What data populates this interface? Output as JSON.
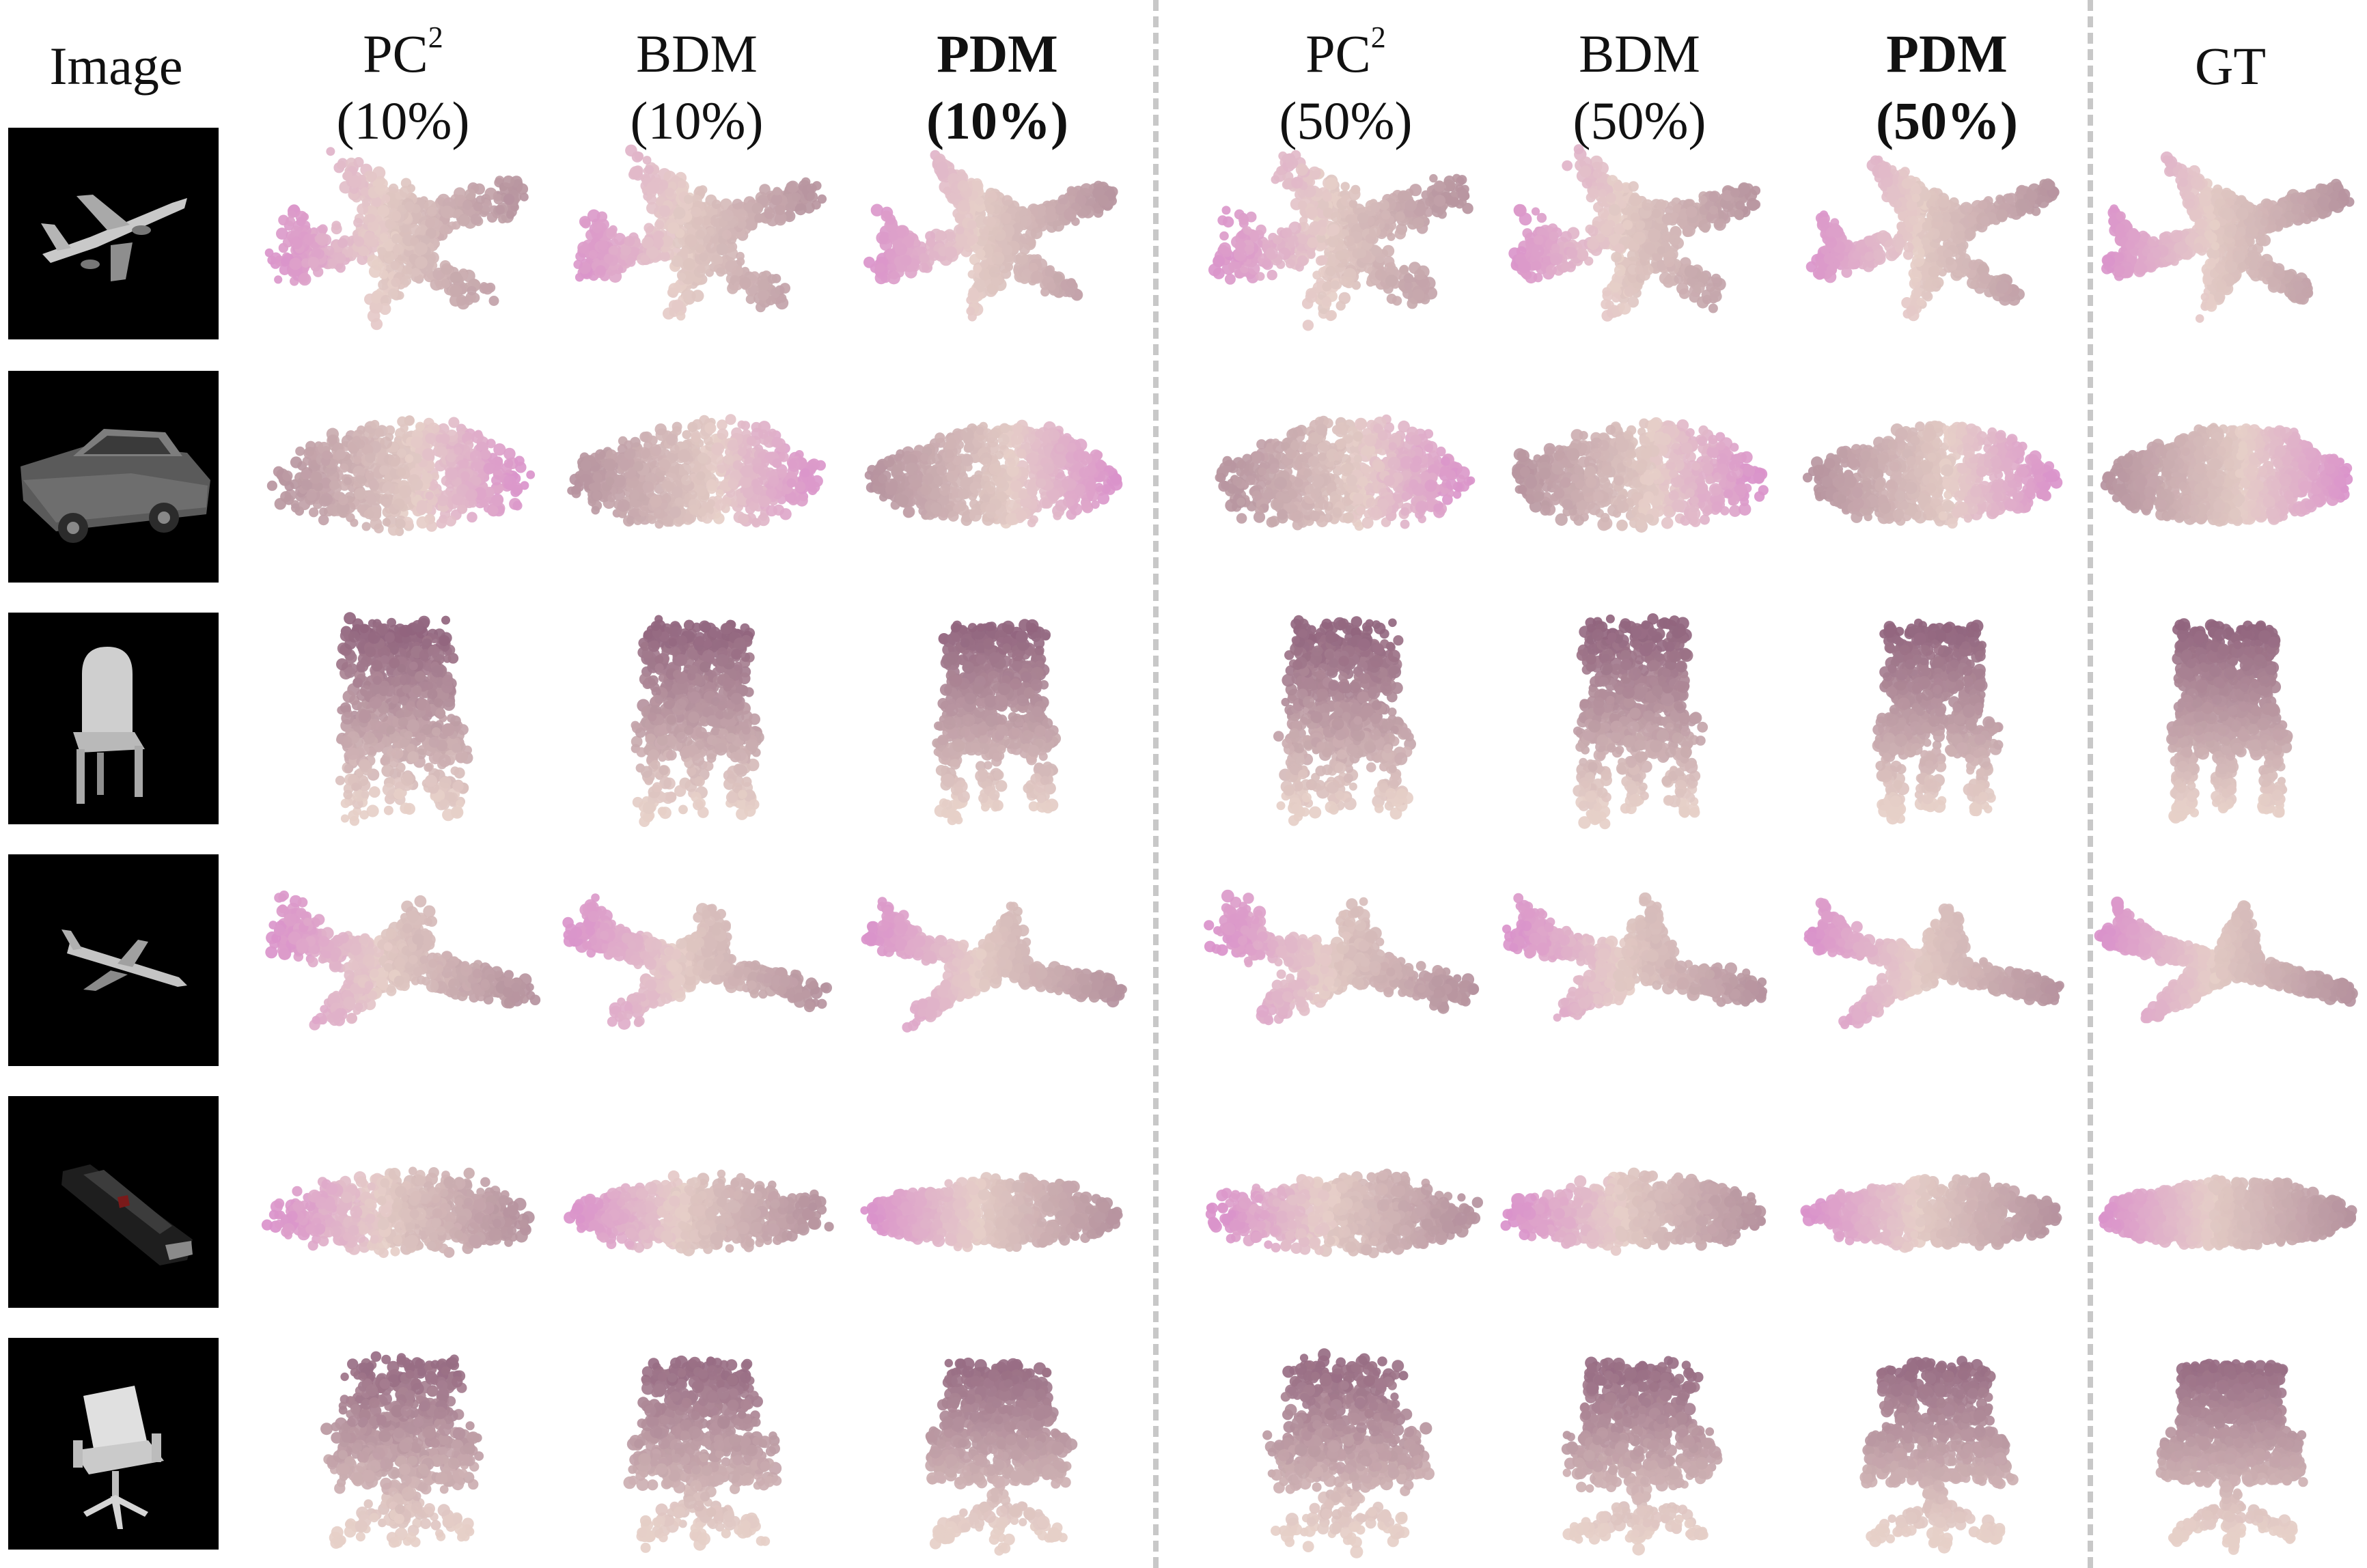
{
  "figure": {
    "columns": [
      {
        "key": "image",
        "line1": "Image",
        "line2": "",
        "bold": false
      },
      {
        "key": "pc2_10",
        "line1": "PC",
        "sup": "2",
        "line2": "(10%)",
        "bold": false
      },
      {
        "key": "bdm_10",
        "line1": "BDM",
        "line2": "(10%)",
        "bold": false
      },
      {
        "key": "pdm_10",
        "line1": "PDM",
        "line2": "(10%)",
        "bold": true
      },
      {
        "key": "pc2_50",
        "line1": "PC",
        "sup": "2",
        "line2": "(50%)",
        "bold": false
      },
      {
        "key": "bdm_50",
        "line1": "BDM",
        "line2": "(50%)",
        "bold": false
      },
      {
        "key": "pdm_50",
        "line1": "PDM",
        "line2": "(50%)",
        "bold": true
      },
      {
        "key": "gt",
        "line1": "GT",
        "line2": "",
        "bold": false
      }
    ],
    "rows": [
      {
        "object": "airplane",
        "thumb_icon": "airplane-render-icon"
      },
      {
        "object": "car",
        "thumb_icon": "car-render-icon"
      },
      {
        "object": "chair",
        "thumb_icon": "chair-render-icon"
      },
      {
        "object": "airplane",
        "thumb_icon": "airplane-render-icon"
      },
      {
        "object": "car",
        "thumb_icon": "car-render-icon"
      },
      {
        "object": "chair",
        "thumb_icon": "chair-render-icon"
      }
    ],
    "colors": {
      "point_dark": "#8a5c78",
      "point_pink": "#d98fcb",
      "point_light": "#e6cfc8",
      "thumb_background": "#000000",
      "divider": "#c8c8c8"
    }
  }
}
